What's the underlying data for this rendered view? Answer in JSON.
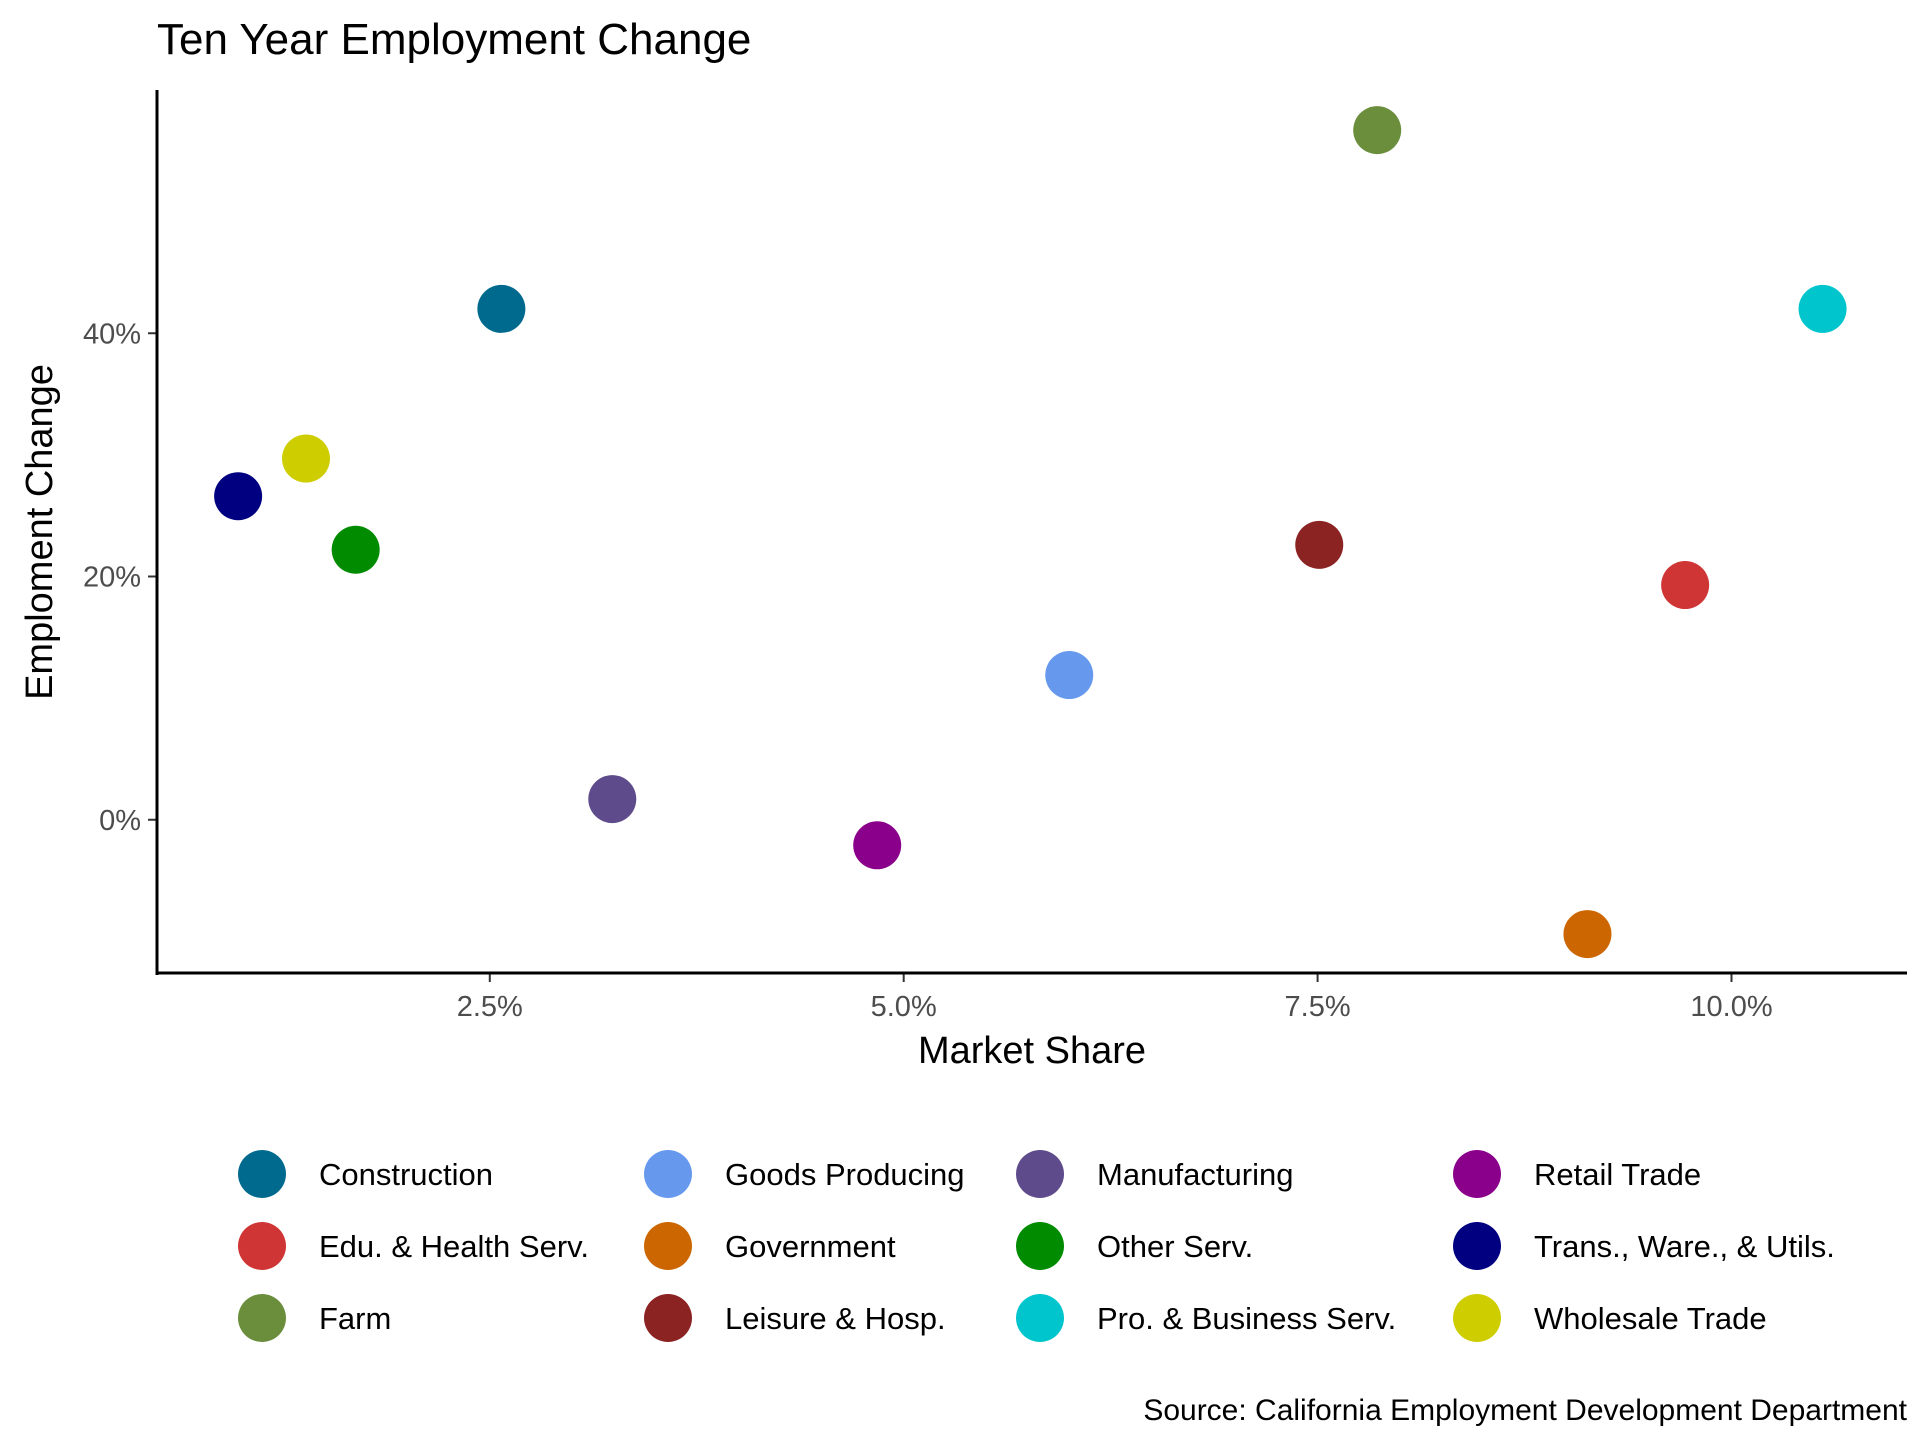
{
  "chart_data": {
    "type": "scatter",
    "title": "Ten Year Employment Change",
    "xlabel": "Market Share",
    "ylabel": "Emploment Change",
    "caption": "Source: California Employment Development Department",
    "x_ticks": [
      {
        "value": 2.5,
        "label": "2.5%"
      },
      {
        "value": 5.0,
        "label": "5.0%"
      },
      {
        "value": 7.5,
        "label": "7.5%"
      },
      {
        "value": 10.0,
        "label": "10.0%"
      }
    ],
    "y_ticks": [
      {
        "value": 0,
        "label": "0%"
      },
      {
        "value": 20,
        "label": "20%"
      },
      {
        "value": 40,
        "label": "40%"
      }
    ],
    "xlim": [
      0.49,
      11.06
    ],
    "ylim": [
      -12.6,
      60.0
    ],
    "grid": false,
    "legend_position": "bottom",
    "points": [
      {
        "name": "Construction",
        "x": 2.57,
        "y": 42.0,
        "color": "#006A8E"
      },
      {
        "name": "Goods Producing",
        "x": 6.0,
        "y": 11.9,
        "color": "#6699EE"
      },
      {
        "name": "Manufacturing",
        "x": 3.24,
        "y": 1.7,
        "color": "#5E4B8B"
      },
      {
        "name": "Retail Trade",
        "x": 4.84,
        "y": -2.1,
        "color": "#8B008B"
      },
      {
        "name": "Edu. & Health Serv.",
        "x": 9.72,
        "y": 19.3,
        "color": "#D03535"
      },
      {
        "name": "Government",
        "x": 9.13,
        "y": -9.4,
        "color": "#CC6600"
      },
      {
        "name": "Other Serv.",
        "x": 1.69,
        "y": 22.2,
        "color": "#008B00"
      },
      {
        "name": "Trans., Ware., & Utils.",
        "x": 0.98,
        "y": 26.6,
        "color": "#000080"
      },
      {
        "name": "Farm",
        "x": 7.86,
        "y": 56.7,
        "color": "#6B8E3D"
      },
      {
        "name": "Leisure & Hosp.",
        "x": 7.51,
        "y": 22.6,
        "color": "#8B2323"
      },
      {
        "name": "Pro. & Business Serv.",
        "x": 10.55,
        "y": 42.0,
        "color": "#00C5CD"
      },
      {
        "name": "Wholesale Trade",
        "x": 1.39,
        "y": 29.7,
        "color": "#CDCD00"
      }
    ]
  }
}
